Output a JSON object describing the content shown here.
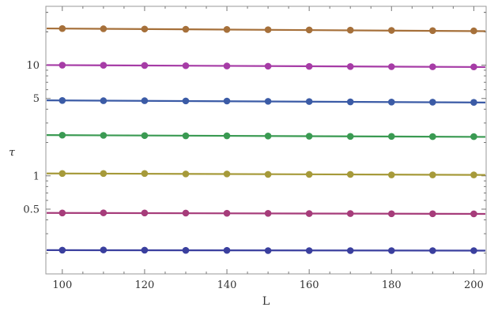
{
  "chart_data": {
    "type": "scatter",
    "xlabel": "L",
    "ylabel": "τ",
    "x_scale": "linear",
    "y_scale": "log",
    "xlim": [
      96,
      203
    ],
    "ylim": [
      0.13,
      34
    ],
    "x_ticks": [
      100,
      120,
      140,
      160,
      180,
      200
    ],
    "x_tick_labels": [
      "100",
      "120",
      "140",
      "160",
      "180",
      "200"
    ],
    "y_ticks": [
      0.5,
      1,
      5,
      10
    ],
    "y_tick_labels": [
      "0.5",
      "1",
      "5",
      "10"
    ],
    "grid": false,
    "x": [
      100,
      110,
      120,
      130,
      140,
      150,
      160,
      170,
      180,
      190,
      200
    ],
    "series": [
      {
        "color": "#3a3f9e",
        "values": [
          0.213,
          0.214,
          0.213,
          0.212,
          0.212,
          0.211,
          0.211,
          0.211,
          0.211,
          0.211,
          0.211
        ],
        "fit": [
          0.213,
          0.211
        ]
      },
      {
        "color": "#a63c7a",
        "values": [
          0.462,
          0.463,
          0.462,
          0.461,
          0.459,
          0.458,
          0.456,
          0.456,
          0.454,
          0.454,
          0.453
        ],
        "fit": [
          0.462,
          0.453
        ]
      },
      {
        "color": "#a69a3a",
        "values": [
          1.05,
          1.05,
          1.05,
          1.04,
          1.04,
          1.03,
          1.03,
          1.03,
          1.02,
          1.02,
          1.02
        ],
        "fit": [
          1.05,
          1.02
        ]
      },
      {
        "color": "#3a9a52",
        "values": [
          2.33,
          2.32,
          2.31,
          2.3,
          2.3,
          2.29,
          2.28,
          2.27,
          2.27,
          2.26,
          2.26
        ],
        "fit": [
          2.33,
          2.25
        ]
      },
      {
        "color": "#3b5ba6",
        "values": [
          4.79,
          4.77,
          4.77,
          4.75,
          4.74,
          4.71,
          4.69,
          4.66,
          4.64,
          4.63,
          4.61
        ],
        "fit": [
          4.8,
          4.6
        ]
      },
      {
        "color": "#a63ca6",
        "values": [
          10.0,
          9.97,
          9.93,
          9.88,
          9.83,
          9.78,
          9.74,
          9.71,
          9.68,
          9.66,
          9.64
        ],
        "fit": [
          10.0,
          9.62
        ]
      },
      {
        "color": "#a6703a",
        "values": [
          21.4,
          21.3,
          21.2,
          21.1,
          21.0,
          20.9,
          20.8,
          20.7,
          20.6,
          20.5,
          20.4
        ],
        "fit": [
          21.4,
          20.3
        ]
      }
    ]
  }
}
